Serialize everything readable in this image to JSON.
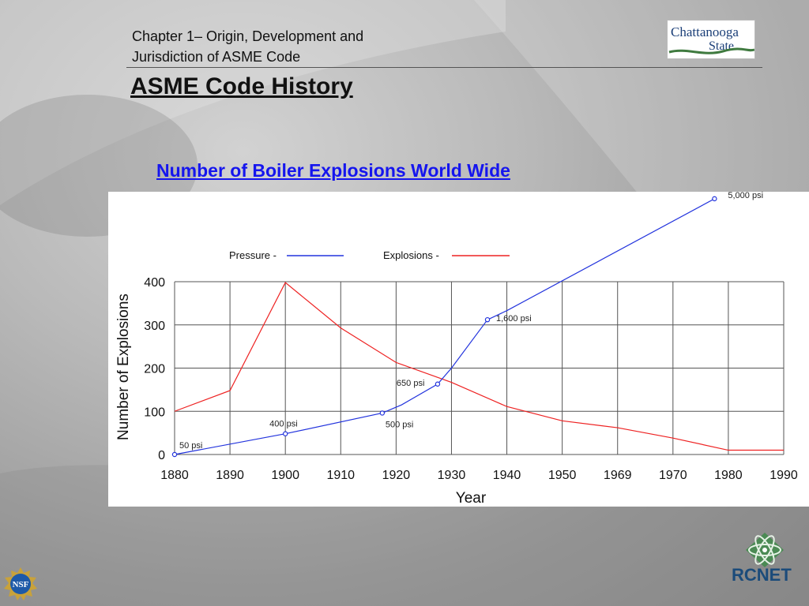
{
  "header": {
    "line1": "Chapter 1– Origin, Development and",
    "line2": "Jurisdiction of ASME Code"
  },
  "slide_title": "ASME Code History",
  "chart_link_title": "Number of  Boiler Explosions World Wide",
  "logos": {
    "chattanooga": {
      "line1": "Chattanooga",
      "line2": "State"
    },
    "rcnet": {
      "name": "RCNET"
    },
    "nsf": {
      "name": "NSF"
    }
  },
  "colors": {
    "pressure": "#2233dd",
    "explosions": "#ee2222",
    "title_link": "#1515ee"
  },
  "chart_data": {
    "type": "line",
    "xlabel": "Year",
    "ylabel": "Number of Explosions",
    "ylim": [
      0,
      400
    ],
    "yticks": [
      "0",
      "100",
      "200",
      "300",
      "400"
    ],
    "x": [
      "1880",
      "1890",
      "1900",
      "1910",
      "1920",
      "1930",
      "1940",
      "1950",
      "1969",
      "1970",
      "1980",
      "1990"
    ],
    "grid": true,
    "legend": [
      {
        "label": "Pressure -",
        "color": "#2233dd"
      },
      {
        "label": "Explosions -",
        "color": "#ee2222"
      }
    ],
    "series": [
      {
        "name": "Explosions",
        "color": "#ee2222",
        "points": [
          {
            "x": "1880",
            "y": 100
          },
          {
            "x": "1890",
            "y": 148
          },
          {
            "x": "1900",
            "y": 398
          },
          {
            "x": "1910",
            "y": 293
          },
          {
            "x": "1920",
            "y": 213
          },
          {
            "x": "1930",
            "y": 167
          },
          {
            "x": "1940",
            "y": 111
          },
          {
            "x": "1950",
            "y": 78
          },
          {
            "x": "1969",
            "y": 62
          },
          {
            "x": "1970",
            "y": 38
          },
          {
            "x": "1980",
            "y": 10
          },
          {
            "x": "1990",
            "y": 10
          }
        ]
      },
      {
        "name": "Pressure",
        "color": "#2233dd",
        "points": [
          {
            "x": 1880,
            "y": 0,
            "label": "50 psi",
            "marker": true
          },
          {
            "x": 1900,
            "y": 48,
            "label": "400 psi",
            "marker": true
          },
          {
            "x": 1917.5,
            "y": 96,
            "label": "500 psi",
            "marker": true
          },
          {
            "x": 1921,
            "y": 115
          },
          {
            "x": 1927.5,
            "y": 163,
            "label": "650 psi",
            "marker": true
          },
          {
            "x": 1930,
            "y": 200
          },
          {
            "x": 1936.5,
            "y": 312,
            "label": "1,600 psi",
            "marker": true
          },
          {
            "x": 1940,
            "y": 333
          },
          {
            "x": 1977.5,
            "y": 592,
            "label": "5,000 psi",
            "marker": true
          }
        ]
      }
    ]
  }
}
